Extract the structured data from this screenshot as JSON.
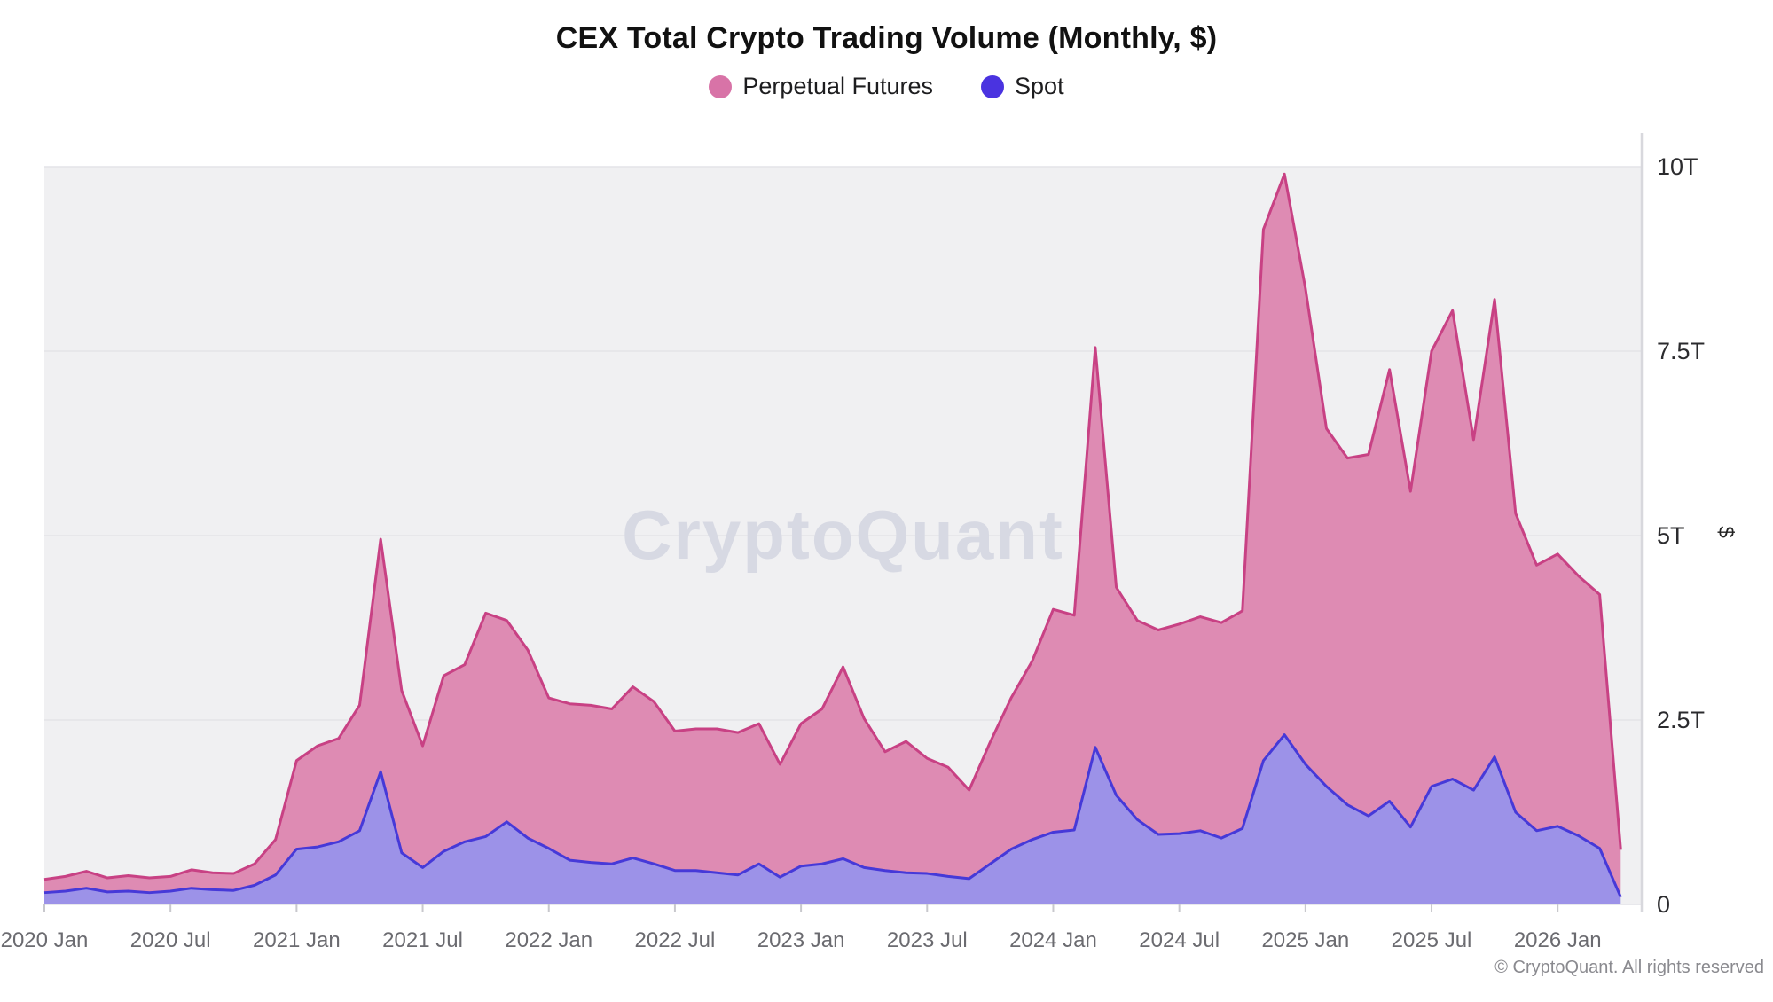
{
  "header": {
    "title": "CEX Total Crypto Trading Volume (Monthly, $)"
  },
  "watermark": "CryptoQuant",
  "footer": {
    "copyright": "© CryptoQuant. All rights reserved"
  },
  "chart_data": {
    "type": "area",
    "stacked": true,
    "title": "CEX Total Crypto Trading Volume (Monthly, $)",
    "xlabel": "",
    "ylabel": "$",
    "ylim": [
      0,
      10
    ],
    "grid": true,
    "legend_position": "top",
    "background_plot": "#f0f0f2",
    "gridline_color": "#e4e4e8",
    "axisline_color": "#d8d8dd",
    "x_months": [
      "2020 Jan",
      "2020 Feb",
      "2020 Mar",
      "2020 Apr",
      "2020 May",
      "2020 Jun",
      "2020 Jul",
      "2020 Aug",
      "2020 Sep",
      "2020 Oct",
      "2020 Nov",
      "2020 Dec",
      "2021 Jan",
      "2021 Feb",
      "2021 Mar",
      "2021 Apr",
      "2021 May",
      "2021 Jun",
      "2021 Jul",
      "2021 Aug",
      "2021 Sep",
      "2021 Oct",
      "2021 Nov",
      "2021 Dec",
      "2022 Jan",
      "2022 Feb",
      "2022 Mar",
      "2022 Apr",
      "2022 May",
      "2022 Jun",
      "2022 Jul",
      "2022 Aug",
      "2022 Sep",
      "2022 Oct",
      "2022 Nov",
      "2022 Dec",
      "2023 Jan",
      "2023 Feb",
      "2023 Mar",
      "2023 Apr",
      "2023 May",
      "2023 Jun",
      "2023 Jul",
      "2023 Aug",
      "2023 Sep",
      "2023 Oct",
      "2023 Nov",
      "2023 Dec",
      "2024 Jan",
      "2024 Feb",
      "2024 Mar",
      "2024 Apr",
      "2024 May",
      "2024 Jun",
      "2024 Jul",
      "2024 Aug",
      "2024 Sep",
      "2024 Oct",
      "2024 Nov",
      "2024 Dec",
      "2025 Jan",
      "2025 Feb",
      "2025 Mar",
      "2025 Apr",
      "2025 May",
      "2025 Jun",
      "2025 Jul",
      "2025 Aug",
      "2025 Sep",
      "2025 Oct",
      "2025 Nov",
      "2025 Dec",
      "2026 Jan",
      "2026 Feb",
      "2026 Mar",
      "2026 Apr"
    ],
    "x_tick_every": 6,
    "x_tick_labels": [
      "2020 Jan",
      "2020 Jul",
      "2021 Jan",
      "2021 Jul",
      "2022 Jan",
      "2022 Jul",
      "2023 Jan",
      "2023 Jul",
      "2024 Jan",
      "2024 Jul",
      "2025 Jan",
      "2025 Jul",
      "2026 Jan"
    ],
    "y_ticks": [
      {
        "value": 0,
        "label": "0"
      },
      {
        "value": 2.5,
        "label": "2.5T"
      },
      {
        "value": 5,
        "label": "5T"
      },
      {
        "value": 7.5,
        "label": "7.5T"
      },
      {
        "value": 10,
        "label": "10T"
      }
    ],
    "unit": "T (trillions USD)",
    "series": [
      {
        "name": "Spot",
        "line_color": "#4639d8",
        "fill_color": "#9c92e8",
        "legend_color": "#4a33e0",
        "values": [
          0.16,
          0.18,
          0.22,
          0.17,
          0.18,
          0.16,
          0.18,
          0.22,
          0.2,
          0.19,
          0.26,
          0.4,
          0.75,
          0.78,
          0.85,
          1.0,
          1.8,
          0.7,
          0.5,
          0.72,
          0.85,
          0.92,
          1.12,
          0.9,
          0.76,
          0.6,
          0.57,
          0.55,
          0.63,
          0.55,
          0.46,
          0.46,
          0.43,
          0.4,
          0.55,
          0.37,
          0.52,
          0.55,
          0.62,
          0.5,
          0.46,
          0.43,
          0.42,
          0.38,
          0.35,
          0.55,
          0.75,
          0.88,
          0.98,
          1.01,
          2.13,
          1.48,
          1.15,
          0.95,
          0.96,
          1.0,
          0.9,
          1.03,
          1.95,
          2.3,
          1.9,
          1.6,
          1.35,
          1.2,
          1.4,
          1.05,
          1.6,
          1.7,
          1.55,
          2.0,
          1.25,
          1.0,
          1.06,
          0.93,
          0.76,
          0.1
        ]
      },
      {
        "name": "Perpetual Futures",
        "line_color": "#c84184",
        "fill_color": "#de8bb3",
        "legend_color": "#d873a7",
        "values": [
          0.18,
          0.2,
          0.23,
          0.19,
          0.21,
          0.2,
          0.2,
          0.25,
          0.23,
          0.23,
          0.29,
          0.48,
          1.2,
          1.37,
          1.4,
          1.7,
          3.15,
          2.2,
          1.65,
          2.38,
          2.4,
          3.03,
          2.73,
          2.55,
          2.04,
          2.12,
          2.13,
          2.1,
          2.32,
          2.2,
          1.89,
          1.92,
          1.95,
          1.93,
          1.9,
          1.53,
          1.93,
          2.1,
          2.6,
          2.02,
          1.61,
          1.78,
          1.56,
          1.48,
          1.2,
          1.65,
          2.05,
          2.42,
          3.02,
          2.91,
          5.42,
          2.82,
          2.7,
          2.77,
          2.84,
          2.9,
          2.92,
          2.95,
          7.2,
          7.6,
          6.45,
          4.85,
          4.7,
          4.9,
          5.85,
          4.55,
          5.9,
          6.35,
          4.75,
          6.2,
          4.05,
          3.6,
          3.69,
          3.52,
          3.44,
          0.64
        ]
      }
    ]
  }
}
